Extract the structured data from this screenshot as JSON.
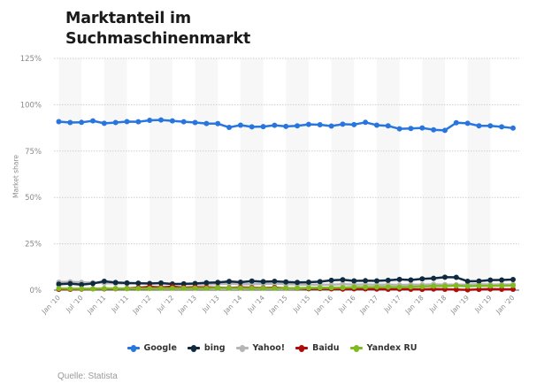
{
  "header": {
    "title_line1": "Marktanteil im",
    "title_line2": "Suchmaschinenmarkt"
  },
  "footer": {
    "source": "Quelle: Statista"
  },
  "chart_data": {
    "type": "line",
    "title": "Marktanteil im Suchmaschinenmarkt",
    "xlabel": "",
    "ylabel": "Market share",
    "ylim": [
      0,
      125
    ],
    "yticks": [
      0,
      25,
      50,
      75,
      100,
      125
    ],
    "ytick_labels": [
      "0%",
      "25%",
      "50%",
      "75%",
      "100%",
      "125%"
    ],
    "grid": true,
    "legend_position": "bottom-center",
    "x_tick_labels": [
      "Jan '10",
      "Jul '10",
      "Jan '11",
      "Jul '11",
      "Jan '12",
      "Jul '12",
      "Jan '13",
      "Jul '13",
      "Jan '14",
      "Jul '14",
      "Jan '15",
      "Jul '15",
      "Jan '16",
      "Jul '16",
      "Jan '17",
      "Jul '17",
      "Jan '18",
      "Jul '18",
      "Jan '19",
      "Jul '19",
      "Jan '20"
    ],
    "x_points_per_tick": 2,
    "series": [
      {
        "name": "Google",
        "color": "#2876dd",
        "values": [
          90.9,
          90.4,
          90.5,
          91.3,
          90.0,
          90.4,
          90.9,
          90.8,
          91.6,
          91.8,
          91.3,
          90.8,
          90.4,
          89.9,
          89.8,
          87.8,
          89.0,
          88.1,
          88.2,
          88.9,
          88.3,
          88.6,
          89.4,
          89.2,
          88.5,
          89.5,
          89.3,
          90.5,
          89.0,
          88.6,
          87.0,
          87.2,
          87.5,
          86.5,
          86.2,
          90.3,
          90.0,
          88.6,
          88.6,
          88.1,
          87.4
        ]
      },
      {
        "name": "bing",
        "color": "#0f2a40",
        "values": [
          3.2,
          3.5,
          3.0,
          3.6,
          4.8,
          4.1,
          3.9,
          3.7,
          3.6,
          3.8,
          3.3,
          3.4,
          3.6,
          4.0,
          4.2,
          4.7,
          4.3,
          4.9,
          4.6,
          4.8,
          4.4,
          4.2,
          4.3,
          4.6,
          5.3,
          5.6,
          5.0,
          5.1,
          5.0,
          5.3,
          5.8,
          5.5,
          6.1,
          6.4,
          7.0,
          6.9,
          4.8,
          4.9,
          5.4,
          5.5,
          5.7
        ]
      },
      {
        "name": "Yahoo!",
        "color": "#b5b5b5",
        "values": [
          4.3,
          4.5,
          4.2,
          4.0,
          3.8,
          3.7,
          3.5,
          3.9,
          3.6,
          3.9,
          3.4,
          3.2,
          3.3,
          3.1,
          3.4,
          3.5,
          3.3,
          3.2,
          3.4,
          3.5,
          3.3,
          3.1,
          2.9,
          3.0,
          2.9,
          3.2,
          3.0,
          3.1,
          2.9,
          3.0,
          2.8,
          3.0,
          2.9,
          3.1,
          3.0,
          2.9,
          3.0,
          3.2,
          3.0,
          3.1,
          3.0
        ]
      },
      {
        "name": "Baidu",
        "color": "#b00b0b",
        "values": [
          0.5,
          0.5,
          0.6,
          0.7,
          0.7,
          0.8,
          0.9,
          1.3,
          1.8,
          1.5,
          1.9,
          1.4,
          1.6,
          1.5,
          1.4,
          1.2,
          1.5,
          1.3,
          1.2,
          1.4,
          1.1,
          1.0,
          0.8,
          0.9,
          0.7,
          0.6,
          0.7,
          0.7,
          0.6,
          0.5,
          0.6,
          0.5,
          0.4,
          0.6,
          0.5,
          0.3,
          0.2,
          0.4,
          0.6,
          0.5,
          0.5
        ]
      },
      {
        "name": "Yandex RU",
        "color": "#7fba1f",
        "values": [
          0.9,
          0.8,
          0.8,
          0.7,
          0.9,
          0.9,
          0.8,
          0.9,
          0.9,
          1.0,
          1.0,
          1.0,
          1.1,
          1.0,
          1.2,
          1.1,
          1.1,
          1.0,
          1.0,
          1.0,
          1.1,
          1.1,
          1.2,
          1.3,
          1.3,
          1.4,
          1.6,
          1.6,
          1.7,
          1.7,
          1.6,
          1.8,
          1.9,
          2.2,
          2.2,
          2.4,
          2.1,
          2.3,
          2.3,
          2.4,
          2.5
        ]
      }
    ]
  }
}
